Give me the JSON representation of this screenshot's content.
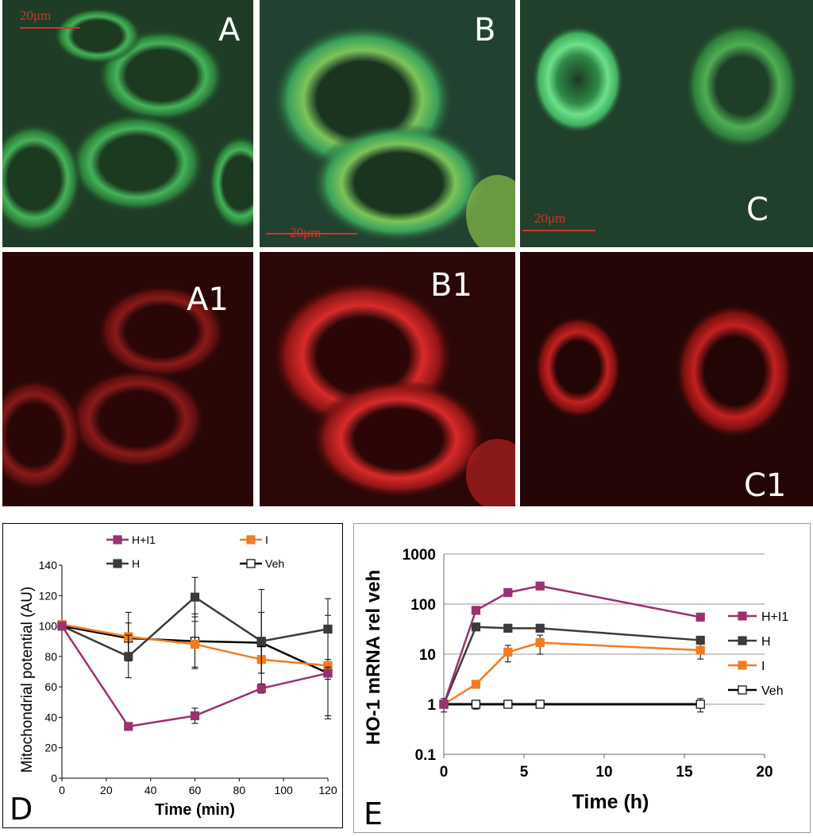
{
  "panels": {
    "A": {
      "label": "A",
      "scale": "20μm"
    },
    "B": {
      "label": "B",
      "scale": "20μm"
    },
    "C": {
      "label": "C",
      "scale": "20μm"
    },
    "A1": {
      "label": "A1"
    },
    "B1": {
      "label": "B1"
    },
    "C1": {
      "label": "C1"
    }
  },
  "colors": {
    "H+I1": "#9b3170",
    "H": "#3b3b3b",
    "I": "#f07c22",
    "Veh": "#000000"
  },
  "chart_data": [
    {
      "panel_label": "D",
      "type": "line",
      "xlabel": "Time (min)",
      "ylabel": "Mitochondrial potential (AU)",
      "xlim": [
        0,
        120
      ],
      "ylim": [
        0,
        140
      ],
      "xticks": [
        "0",
        "20",
        "40",
        "60",
        "80",
        "100",
        "120"
      ],
      "yticks": [
        "0",
        "20",
        "40",
        "60",
        "80",
        "100",
        "120",
        "140"
      ],
      "grid": false,
      "x": [
        0,
        30,
        60,
        90,
        120
      ],
      "series": [
        {
          "name": "H+I1",
          "values": [
            100,
            34,
            41,
            59,
            69
          ],
          "errors": [
            0,
            2,
            5,
            3,
            4
          ],
          "marker": "filled-square"
        },
        {
          "name": "H",
          "values": [
            100,
            80,
            119,
            90,
            98
          ],
          "errors": [
            0,
            14,
            13,
            34,
            20
          ],
          "marker": "filled-square"
        },
        {
          "name": "I",
          "values": [
            101,
            93,
            88,
            78,
            74
          ],
          "errors": [
            0,
            16,
            15,
            9,
            33
          ],
          "marker": "filled-square"
        },
        {
          "name": "Veh",
          "values": [
            100,
            92,
            90,
            89,
            69
          ],
          "errors": [
            0,
            10,
            18,
            20,
            30
          ],
          "marker": "open-square"
        }
      ],
      "legend": {
        "placement": "top",
        "entries": [
          "H+I1",
          "I",
          "H",
          "Veh"
        ]
      }
    },
    {
      "panel_label": "E",
      "type": "line",
      "xlabel": "Time (h)",
      "ylabel": "HO-1 mRNA  rel veh",
      "xlim": [
        0,
        20
      ],
      "ylim": [
        0.1,
        1000
      ],
      "yscale": "log",
      "xticks": [
        "0",
        "5",
        "10",
        "15",
        "20"
      ],
      "yticks": [
        "0.1",
        "1",
        "10",
        "100",
        "1000"
      ],
      "grid": true,
      "series": [
        {
          "name": "H+I1",
          "x": [
            0,
            2,
            4,
            6,
            16
          ],
          "values": [
            1,
            75,
            170,
            230,
            55
          ],
          "marker": "filled-square"
        },
        {
          "name": "H",
          "x": [
            0,
            2,
            4,
            6,
            16
          ],
          "values": [
            1,
            35,
            33,
            33,
            19
          ],
          "marker": "filled-square"
        },
        {
          "name": "I",
          "x": [
            0,
            2,
            4,
            6,
            16
          ],
          "values": [
            1,
            2.5,
            11,
            17,
            12
          ],
          "marker": "filled-square"
        },
        {
          "name": "Veh",
          "x": [
            0,
            2,
            4,
            6,
            16
          ],
          "values": [
            1,
            1,
            1,
            1,
            1
          ],
          "marker": "open-square"
        }
      ],
      "legend": {
        "placement": "right",
        "entries": [
          "H+I1",
          "H",
          "I",
          "Veh"
        ]
      }
    }
  ]
}
